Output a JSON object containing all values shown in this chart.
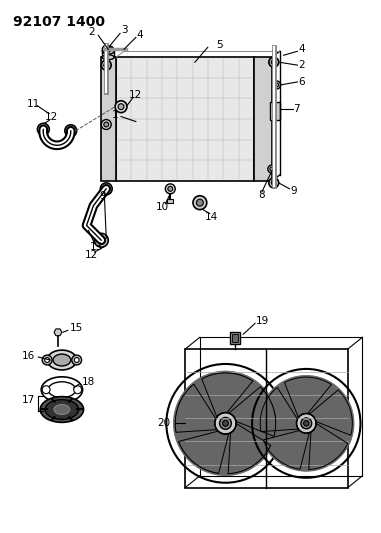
{
  "title": "92107 1400",
  "bg": "#ffffff",
  "lc": "#000000",
  "tc": "#000000",
  "title_fs": 10,
  "lbl_fs": 7.5,
  "fig_w": 3.81,
  "fig_h": 5.33,
  "dpi": 100
}
